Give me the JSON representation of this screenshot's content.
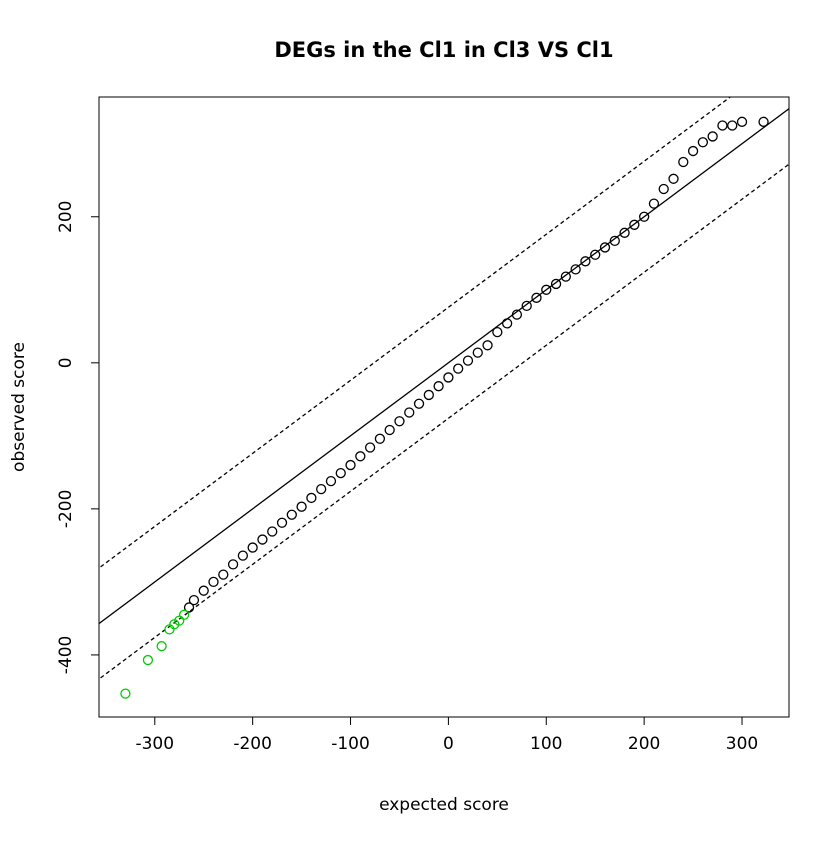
{
  "chart_data": {
    "type": "scatter",
    "title": "DEGs in the Cl1 in Cl3 VS Cl1",
    "x_label": "expected score",
    "y_label": "observed score",
    "xlim": [
      -357,
      348
    ],
    "ylim": [
      -485,
      364
    ],
    "xticks": [
      -300,
      -200,
      -100,
      0,
      100,
      200,
      300
    ],
    "yticks": [
      -400,
      -200,
      0,
      200
    ],
    "reference_lines": [
      {
        "intercept": 0,
        "slope": 1,
        "style": "solid"
      },
      {
        "intercept": 76,
        "slope": 1,
        "style": "dashed"
      },
      {
        "intercept": -76,
        "slope": 1,
        "style": "dashed"
      }
    ],
    "series": [
      {
        "color": "#000000",
        "x": [
          -265,
          -260,
          -250,
          -240,
          -230,
          -220,
          -210,
          -200,
          -190,
          -180,
          -170,
          -160,
          -150,
          -140,
          -130,
          -120,
          -110,
          -100,
          -90,
          -80,
          -70,
          -60,
          -50,
          -40,
          -30,
          -20,
          -10,
          0,
          10,
          20,
          30,
          40,
          50,
          60,
          70,
          80,
          90,
          100,
          110,
          120,
          130,
          140,
          150,
          160,
          170,
          180,
          190,
          200,
          210,
          220,
          230,
          240,
          250,
          260,
          270,
          280,
          290,
          300,
          322
        ],
        "values": [
          -335,
          -325,
          -312,
          -300,
          -290,
          -276,
          -264,
          -253,
          -242,
          -231,
          -219,
          -208,
          -197,
          -185,
          -173,
          -162,
          -151,
          -140,
          -128,
          -116,
          -104,
          -92,
          -80,
          -68,
          -56,
          -44,
          -32,
          -20,
          -8,
          3,
          14,
          24,
          42,
          54,
          66,
          78,
          89,
          100,
          108,
          118,
          128,
          139,
          148,
          158,
          167,
          178,
          189,
          200,
          218,
          238,
          252,
          275,
          290,
          302,
          310,
          325,
          325,
          330,
          330
        ]
      },
      {
        "color": "#00cc00",
        "x": [
          -330,
          -307,
          -293,
          -285,
          -280,
          -275,
          -270
        ],
        "values": [
          -453,
          -407,
          -388,
          -365,
          -358,
          -353,
          -345
        ]
      }
    ]
  }
}
